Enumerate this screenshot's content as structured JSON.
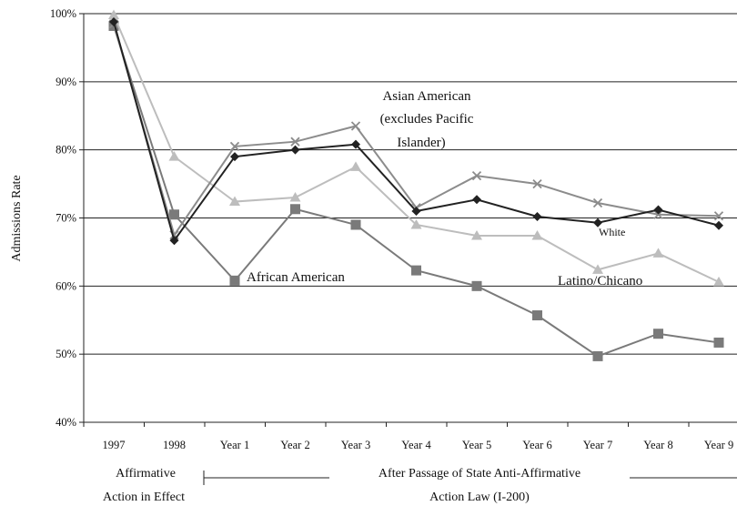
{
  "chart_data": {
    "type": "line",
    "title": "",
    "xlabel": "",
    "ylabel": "Admissions Rate",
    "ylim": [
      40,
      100
    ],
    "y_ticks": [
      "40%",
      "50%",
      "60%",
      "70%",
      "80%",
      "90%",
      "100%"
    ],
    "grid": true,
    "categories": [
      "1997",
      "1998",
      "Year 1",
      "Year 2",
      "Year 3",
      "Year 4",
      "Year 5",
      "Year 6",
      "Year 7",
      "Year 8",
      "Year 9"
    ],
    "series": [
      {
        "name": "Asian American (excludes Pacific Islander)",
        "color": "#8c8c8c",
        "marker": "x",
        "values": [
          98.5,
          67.5,
          80.5,
          81.2,
          83.5,
          71.5,
          76.2,
          75,
          72.2,
          70.5,
          70.3
        ]
      },
      {
        "name": "White",
        "color": "#222222",
        "marker": "diamond",
        "values": [
          98.8,
          66.7,
          79,
          80,
          80.8,
          71,
          72.7,
          70.2,
          69.3,
          71.2,
          68.9
        ]
      },
      {
        "name": "Latino/Chicano",
        "color": "#bdbdbd",
        "marker": "triangle",
        "values": [
          99.8,
          79,
          72.4,
          73,
          77.5,
          69,
          67.4,
          67.4,
          62.4,
          64.8,
          60.6
        ]
      },
      {
        "name": "African American",
        "color": "#7a7a7a",
        "marker": "square",
        "values": [
          98.2,
          70.5,
          60.8,
          71.3,
          69,
          62.3,
          60,
          55.7,
          49.7,
          53,
          51.7
        ]
      }
    ],
    "annotations": {
      "asian": [
        "Asian American",
        "(excludes Pacific",
        "Islander)"
      ],
      "white": "White",
      "latino": "Latino/Chicano",
      "african": "African American"
    },
    "periods": {
      "before": [
        "Affirmative",
        "Action in Effect"
      ],
      "after": [
        "After Passage of State Anti-Affirmative",
        "Action Law (I-200)"
      ]
    }
  }
}
